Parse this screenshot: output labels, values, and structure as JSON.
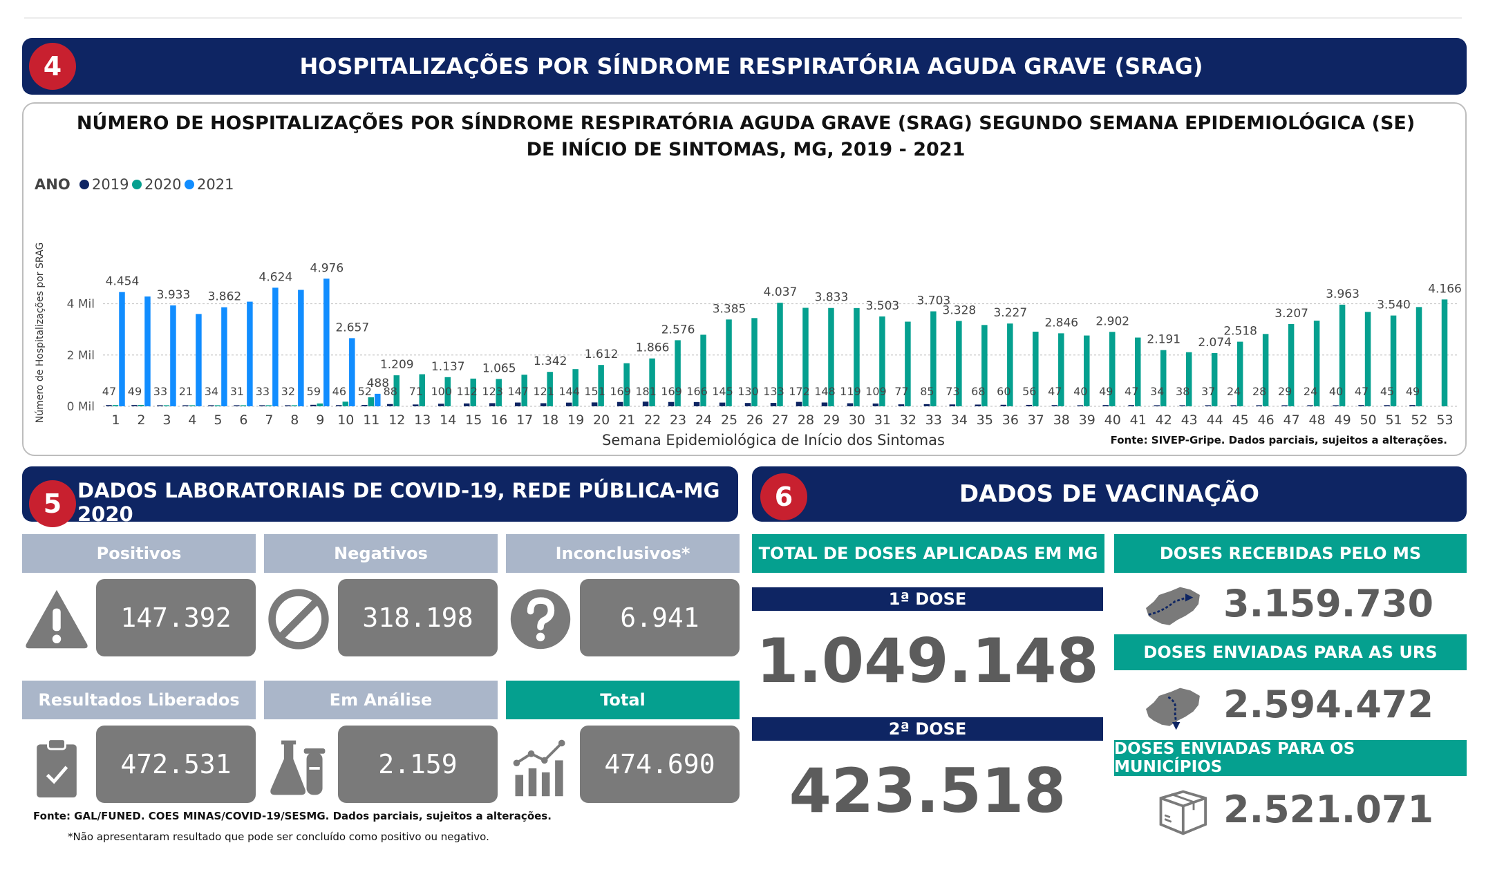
{
  "section4": {
    "number": "4",
    "title": "HOSPITALIZAÇÕES POR SÍNDROME RESPIRATÓRIA AGUDA GRAVE (SRAG)"
  },
  "chart_data": {
    "type": "bar",
    "title": "NÚMERO DE HOSPITALIZAÇÕES POR SÍNDROME RESPIRATÓRIA AGUDA GRAVE (SRAG) SEGUNDO SEMANA EPIDEMIOLÓGICA (SE) DE INÍCIO DE SINTOMAS, MG, 2019 - 2021",
    "legend_title": "ANO",
    "xlabel": "Semana Epidemiológica de Início dos Sintomas",
    "ylabel": "Número de Hospitalizações por SRAG",
    "yticks": [
      {
        "value": 0,
        "label": "0 Mil"
      },
      {
        "value": 2000,
        "label": "2 Mil"
      },
      {
        "value": 4000,
        "label": "4 Mil"
      }
    ],
    "ylim": [
      0,
      5200
    ],
    "categories": [
      "1",
      "2",
      "3",
      "4",
      "5",
      "6",
      "7",
      "8",
      "9",
      "10",
      "11",
      "12",
      "13",
      "14",
      "15",
      "16",
      "17",
      "18",
      "19",
      "20",
      "21",
      "22",
      "23",
      "24",
      "25",
      "26",
      "27",
      "28",
      "29",
      "30",
      "31",
      "32",
      "33",
      "34",
      "35",
      "36",
      "37",
      "38",
      "39",
      "40",
      "41",
      "42",
      "43",
      "44",
      "45",
      "46",
      "47",
      "48",
      "49",
      "50",
      "51",
      "52",
      "53"
    ],
    "series": [
      {
        "name": "2019",
        "color": "#0e2563",
        "values": [
          47,
          49,
          33,
          21,
          34,
          31,
          33,
          32,
          59,
          46,
          52,
          88,
          71,
          100,
          112,
          123,
          147,
          121,
          144,
          151,
          169,
          181,
          169,
          166,
          145,
          130,
          133,
          172,
          148,
          119,
          109,
          77,
          85,
          73,
          68,
          60,
          56,
          47,
          40,
          49,
          47,
          34,
          38,
          37,
          24,
          28,
          29,
          24,
          40,
          47,
          45,
          49,
          null
        ]
      },
      {
        "name": "2020",
        "color": "#05a08f",
        "values": [
          48,
          55,
          40,
          30,
          37,
          36,
          35,
          40,
          110,
          180,
          350,
          1209,
          1250,
          1137,
          1080,
          1065,
          1230,
          1342,
          1450,
          1612,
          1680,
          1866,
          2576,
          2790,
          3385,
          3440,
          4037,
          3840,
          3833,
          3830,
          3503,
          3300,
          3703,
          3328,
          3170,
          3227,
          2910,
          2846,
          2760,
          2902,
          2680,
          2191,
          2110,
          2074,
          2518,
          2820,
          3207,
          3340,
          3963,
          3680,
          3540,
          3870,
          4166
        ]
      },
      {
        "name": "2021",
        "color": "#118dff",
        "values": [
          4454,
          4280,
          3933,
          3600,
          3862,
          4080,
          4624,
          4540,
          4976,
          2657,
          488,
          null,
          null,
          null,
          null,
          null,
          null,
          null,
          null,
          null,
          null,
          null,
          null,
          null,
          null,
          null,
          null,
          null,
          null,
          null,
          null,
          null,
          null,
          null,
          null,
          null,
          null,
          null,
          null,
          null,
          null,
          null,
          null,
          null,
          null,
          null,
          null,
          null,
          null,
          null,
          null,
          null,
          null
        ]
      }
    ],
    "data_labels_top": [
      {
        "index": 0,
        "series": "2021",
        "text": "4.454"
      },
      {
        "index": 2,
        "series": "2021",
        "text": "3.933"
      },
      {
        "index": 4,
        "series": "2021",
        "text": "3.862"
      },
      {
        "index": 6,
        "series": "2021",
        "text": "4.624"
      },
      {
        "index": 8,
        "series": "2021",
        "text": "4.976"
      },
      {
        "index": 9,
        "series": "2021",
        "text": "2.657"
      },
      {
        "index": 10,
        "series": "2021",
        "text": "488"
      },
      {
        "index": 11,
        "series": "2020",
        "text": "1.209"
      },
      {
        "index": 13,
        "series": "2020",
        "text": "1.137"
      },
      {
        "index": 15,
        "series": "2020",
        "text": "1.065"
      },
      {
        "index": 17,
        "series": "2020",
        "text": "1.342"
      },
      {
        "index": 19,
        "series": "2020",
        "text": "1.612"
      },
      {
        "index": 21,
        "series": "2020",
        "text": "1.866"
      },
      {
        "index": 22,
        "series": "2020",
        "text": "2.576"
      },
      {
        "index": 24,
        "series": "2020",
        "text": "3.385"
      },
      {
        "index": 26,
        "series": "2020",
        "text": "4.037"
      },
      {
        "index": 28,
        "series": "2020",
        "text": "3.833"
      },
      {
        "index": 30,
        "series": "2020",
        "text": "3.503"
      },
      {
        "index": 32,
        "series": "2020",
        "text": "3.703"
      },
      {
        "index": 33,
        "series": "2020",
        "text": "3.328"
      },
      {
        "index": 35,
        "series": "2020",
        "text": "3.227"
      },
      {
        "index": 37,
        "series": "2020",
        "text": "2.846"
      },
      {
        "index": 39,
        "series": "2020",
        "text": "2.902"
      },
      {
        "index": 41,
        "series": "2020",
        "text": "2.191"
      },
      {
        "index": 43,
        "series": "2020",
        "text": "2.074"
      },
      {
        "index": 44,
        "series": "2020",
        "text": "2.518"
      },
      {
        "index": 46,
        "series": "2020",
        "text": "3.207"
      },
      {
        "index": 48,
        "series": "2020",
        "text": "3.963"
      },
      {
        "index": 50,
        "series": "2020",
        "text": "3.540"
      },
      {
        "index": 52,
        "series": "2020",
        "text": "4.166"
      }
    ],
    "source": "Fonte: SIVEP-Gripe. Dados parciais, sujeitos a alterações."
  },
  "section5": {
    "number": "5",
    "title": "DADOS LABORATORIAIS DE COVID-19, REDE PÚBLICA-MG 2020",
    "cards": [
      {
        "label": "Positivos",
        "value": "147.392",
        "icon": "warning-icon"
      },
      {
        "label": "Negativos",
        "value": "318.198",
        "icon": "prohibited-icon"
      },
      {
        "label": "Inconclusivos*",
        "value": "6.941",
        "icon": "question-icon"
      },
      {
        "label": "Resultados Liberados",
        "value": "472.531",
        "icon": "clipboard-check-icon"
      },
      {
        "label": "Em Análise",
        "value": "2.159",
        "icon": "lab-flask-icon"
      },
      {
        "label": "Total",
        "value": "474.690",
        "icon": "growth-chart-icon"
      }
    ],
    "source": "Fonte: GAL/FUNED. COES MINAS/COVID-19/SESMG. Dados parciais, sujeitos a alterações.",
    "footnote": "*Não apresentaram resultado que pode ser concluído como positivo ou negativo."
  },
  "section6": {
    "number": "6",
    "title": "DADOS DE VACINAÇÃO",
    "total_doses_label": "TOTAL DE DOSES APLICADAS EM MG",
    "dose1_label": "1ª DOSE",
    "dose1_value": "1.049.148",
    "dose2_label": "2ª DOSE",
    "dose2_value": "423.518",
    "received_label": "DOSES RECEBIDAS PELO MS",
    "received_value": "3.159.730",
    "sent_urs_label": "DOSES ENVIADAS PARA AS URS",
    "sent_urs_value": "2.594.472",
    "sent_mun_label": "DOSES ENVIADAS PARA OS MUNICÍPIOS",
    "sent_mun_value": "2.521.071"
  }
}
